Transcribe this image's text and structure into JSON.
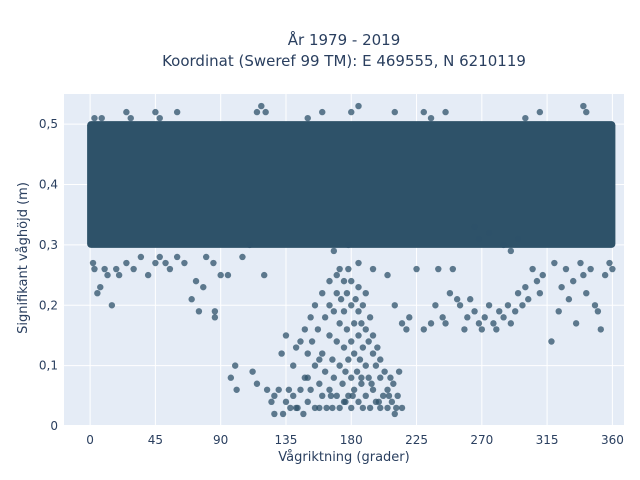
{
  "chart_data": {
    "type": "scatter",
    "title_line1": "År 1979 - 2019",
    "title_line2": "Koordinat (Sweref 99 TM): E 469555, N 6210119",
    "xlabel": "Vågriktning (grader)",
    "ylabel": "Signifikant våghöjd (m)",
    "xlim": [
      -18,
      368
    ],
    "ylim": [
      0,
      0.55
    ],
    "xticks": [
      0,
      45,
      90,
      135,
      180,
      225,
      270,
      315,
      360
    ],
    "xtick_labels": [
      "0",
      "45",
      "90",
      "135",
      "180",
      "225",
      "270",
      "315",
      "360"
    ],
    "yticks": [
      0,
      0.1,
      0.2,
      0.3,
      0.4,
      0.5
    ],
    "ytick_labels": [
      "0",
      "0,1",
      "0,2",
      "0,3",
      "0,4",
      "0,5"
    ],
    "grid": true,
    "background_color": "#e5ecf6",
    "marker_color": "#2e5269",
    "dense_band": {
      "x": [
        0,
        360
      ],
      "y": [
        0.3,
        0.5
      ]
    },
    "points": [
      [
        2,
        0.27
      ],
      [
        3,
        0.26
      ],
      [
        5,
        0.22
      ],
      [
        7,
        0.23
      ],
      [
        10,
        0.26
      ],
      [
        12,
        0.25
      ],
      [
        15,
        0.2
      ],
      [
        18,
        0.26
      ],
      [
        20,
        0.25
      ],
      [
        25,
        0.27
      ],
      [
        30,
        0.26
      ],
      [
        35,
        0.28
      ],
      [
        40,
        0.25
      ],
      [
        45,
        0.27
      ],
      [
        48,
        0.28
      ],
      [
        52,
        0.27
      ],
      [
        55,
        0.26
      ],
      [
        60,
        0.28
      ],
      [
        65,
        0.27
      ],
      [
        70,
        0.21
      ],
      [
        73,
        0.24
      ],
      [
        75,
        0.19
      ],
      [
        78,
        0.23
      ],
      [
        80,
        0.28
      ],
      [
        85,
        0.27
      ],
      [
        86,
        0.19
      ],
      [
        86,
        0.18
      ],
      [
        90,
        0.25
      ],
      [
        95,
        0.25
      ],
      [
        97,
        0.08
      ],
      [
        100,
        0.1
      ],
      [
        101,
        0.06
      ],
      [
        105,
        0.28
      ],
      [
        110,
        0.3
      ],
      [
        112,
        0.09
      ],
      [
        115,
        0.07
      ],
      [
        120,
        0.25
      ],
      [
        122,
        0.06
      ],
      [
        125,
        0.04
      ],
      [
        127,
        0.05
      ],
      [
        130,
        0.06
      ],
      [
        132,
        0.12
      ],
      [
        133,
        0.02
      ],
      [
        135,
        0.04
      ],
      [
        135,
        0.15
      ],
      [
        137,
        0.06
      ],
      [
        138,
        0.03
      ],
      [
        140,
        0.05
      ],
      [
        140,
        0.1
      ],
      [
        142,
        0.13
      ],
      [
        143,
        0.03
      ],
      [
        145,
        0.06
      ],
      [
        145,
        0.14
      ],
      [
        147,
        0.02
      ],
      [
        148,
        0.08
      ],
      [
        148,
        0.16
      ],
      [
        150,
        0.12
      ],
      [
        150,
        0.04
      ],
      [
        152,
        0.06
      ],
      [
        152,
        0.18
      ],
      [
        153,
        0.14
      ],
      [
        155,
        0.03
      ],
      [
        155,
        0.1
      ],
      [
        155,
        0.2
      ],
      [
        157,
        0.16
      ],
      [
        158,
        0.07
      ],
      [
        158,
        0.03
      ],
      [
        160,
        0.12
      ],
      [
        160,
        0.22
      ],
      [
        160,
        0.05
      ],
      [
        162,
        0.18
      ],
      [
        162,
        0.09
      ],
      [
        163,
        0.03
      ],
      [
        165,
        0.15
      ],
      [
        165,
        0.2
      ],
      [
        165,
        0.24
      ],
      [
        165,
        0.06
      ],
      [
        167,
        0.11
      ],
      [
        167,
        0.03
      ],
      [
        168,
        0.19
      ],
      [
        168,
        0.08
      ],
      [
        170,
        0.14
      ],
      [
        170,
        0.22
      ],
      [
        170,
        0.05
      ],
      [
        170,
        0.25
      ],
      [
        172,
        0.17
      ],
      [
        172,
        0.1
      ],
      [
        172,
        0.03
      ],
      [
        173,
        0.21
      ],
      [
        174,
        0.07
      ],
      [
        175,
        0.13
      ],
      [
        175,
        0.19
      ],
      [
        175,
        0.24
      ],
      [
        175,
        0.04
      ],
      [
        176,
        0.09
      ],
      [
        177,
        0.16
      ],
      [
        177,
        0.22
      ],
      [
        178,
        0.11
      ],
      [
        178,
        0.05
      ],
      [
        178,
        0.26
      ],
      [
        180,
        0.14
      ],
      [
        180,
        0.2
      ],
      [
        180,
        0.08
      ],
      [
        180,
        0.03
      ],
      [
        180,
        0.24
      ],
      [
        182,
        0.17
      ],
      [
        182,
        0.12
      ],
      [
        182,
        0.06
      ],
      [
        183,
        0.21
      ],
      [
        184,
        0.09
      ],
      [
        185,
        0.15
      ],
      [
        185,
        0.19
      ],
      [
        185,
        0.04
      ],
      [
        185,
        0.23
      ],
      [
        186,
        0.11
      ],
      [
        187,
        0.17
      ],
      [
        187,
        0.07
      ],
      [
        188,
        0.13
      ],
      [
        188,
        0.03
      ],
      [
        188,
        0.2
      ],
      [
        190,
        0.16
      ],
      [
        190,
        0.1
      ],
      [
        190,
        0.05
      ],
      [
        190,
        0.22
      ],
      [
        192,
        0.14
      ],
      [
        192,
        0.08
      ],
      [
        193,
        0.18
      ],
      [
        193,
        0.03
      ],
      [
        195,
        0.12
      ],
      [
        195,
        0.06
      ],
      [
        195,
        0.15
      ],
      [
        197,
        0.1
      ],
      [
        197,
        0.04
      ],
      [
        198,
        0.13
      ],
      [
        200,
        0.08
      ],
      [
        200,
        0.03
      ],
      [
        200,
        0.11
      ],
      [
        202,
        0.05
      ],
      [
        203,
        0.09
      ],
      [
        205,
        0.03
      ],
      [
        205,
        0.06
      ],
      [
        207,
        0.08
      ],
      [
        208,
        0.04
      ],
      [
        210,
        0.02
      ],
      [
        212,
        0.05
      ],
      [
        213,
        0.09
      ],
      [
        215,
        0.03
      ],
      [
        187,
        0.08
      ],
      [
        181,
        0.05
      ],
      [
        176,
        0.04
      ],
      [
        127,
        0.02
      ],
      [
        142,
        0.03
      ],
      [
        150,
        0.08
      ],
      [
        158,
        0.11
      ],
      [
        166,
        0.05
      ],
      [
        194,
        0.07
      ],
      [
        199,
        0.04
      ],
      [
        206,
        0.05
      ],
      [
        209,
        0.07
      ],
      [
        211,
        0.03
      ],
      [
        168,
        0.29
      ],
      [
        172,
        0.26
      ],
      [
        178,
        0.3
      ],
      [
        185,
        0.27
      ],
      [
        195,
        0.26
      ],
      [
        205,
        0.25
      ],
      [
        210,
        0.2
      ],
      [
        215,
        0.17
      ],
      [
        218,
        0.16
      ],
      [
        220,
        0.18
      ],
      [
        225,
        0.26
      ],
      [
        230,
        0.16
      ],
      [
        235,
        0.17
      ],
      [
        238,
        0.2
      ],
      [
        240,
        0.26
      ],
      [
        243,
        0.18
      ],
      [
        245,
        0.17
      ],
      [
        248,
        0.22
      ],
      [
        250,
        0.26
      ],
      [
        253,
        0.21
      ],
      [
        255,
        0.2
      ],
      [
        258,
        0.16
      ],
      [
        260,
        0.18
      ],
      [
        262,
        0.21
      ],
      [
        265,
        0.19
      ],
      [
        268,
        0.17
      ],
      [
        270,
        0.16
      ],
      [
        272,
        0.18
      ],
      [
        275,
        0.2
      ],
      [
        278,
        0.17
      ],
      [
        280,
        0.16
      ],
      [
        282,
        0.19
      ],
      [
        285,
        0.18
      ],
      [
        288,
        0.2
      ],
      [
        290,
        0.17
      ],
      [
        293,
        0.19
      ],
      [
        295,
        0.22
      ],
      [
        298,
        0.2
      ],
      [
        300,
        0.23
      ],
      [
        302,
        0.21
      ],
      [
        305,
        0.26
      ],
      [
        308,
        0.24
      ],
      [
        310,
        0.22
      ],
      [
        312,
        0.25
      ],
      [
        318,
        0.14
      ],
      [
        320,
        0.27
      ],
      [
        323,
        0.19
      ],
      [
        325,
        0.23
      ],
      [
        328,
        0.26
      ],
      [
        330,
        0.21
      ],
      [
        333,
        0.24
      ],
      [
        335,
        0.17
      ],
      [
        338,
        0.27
      ],
      [
        340,
        0.25
      ],
      [
        342,
        0.22
      ],
      [
        345,
        0.26
      ],
      [
        348,
        0.2
      ],
      [
        350,
        0.19
      ],
      [
        352,
        0.16
      ],
      [
        355,
        0.25
      ],
      [
        358,
        0.27
      ],
      [
        360,
        0.26
      ],
      [
        265,
        0.33
      ],
      [
        268,
        0.31
      ],
      [
        275,
        0.32
      ],
      [
        285,
        0.3
      ],
      [
        290,
        0.29
      ],
      [
        295,
        0.31
      ],
      [
        230,
        0.52
      ],
      [
        235,
        0.51
      ],
      [
        185,
        0.53
      ],
      [
        180,
        0.52
      ],
      [
        115,
        0.52
      ],
      [
        118,
        0.53
      ],
      [
        121,
        0.52
      ],
      [
        25,
        0.52
      ],
      [
        28,
        0.51
      ],
      [
        45,
        0.52
      ],
      [
        48,
        0.51
      ],
      [
        60,
        0.52
      ],
      [
        210,
        0.52
      ],
      [
        245,
        0.52
      ],
      [
        300,
        0.51
      ],
      [
        310,
        0.52
      ],
      [
        340,
        0.53
      ],
      [
        342,
        0.52
      ],
      [
        3,
        0.51
      ],
      [
        8,
        0.51
      ],
      [
        150,
        0.51
      ],
      [
        160,
        0.52
      ]
    ]
  }
}
